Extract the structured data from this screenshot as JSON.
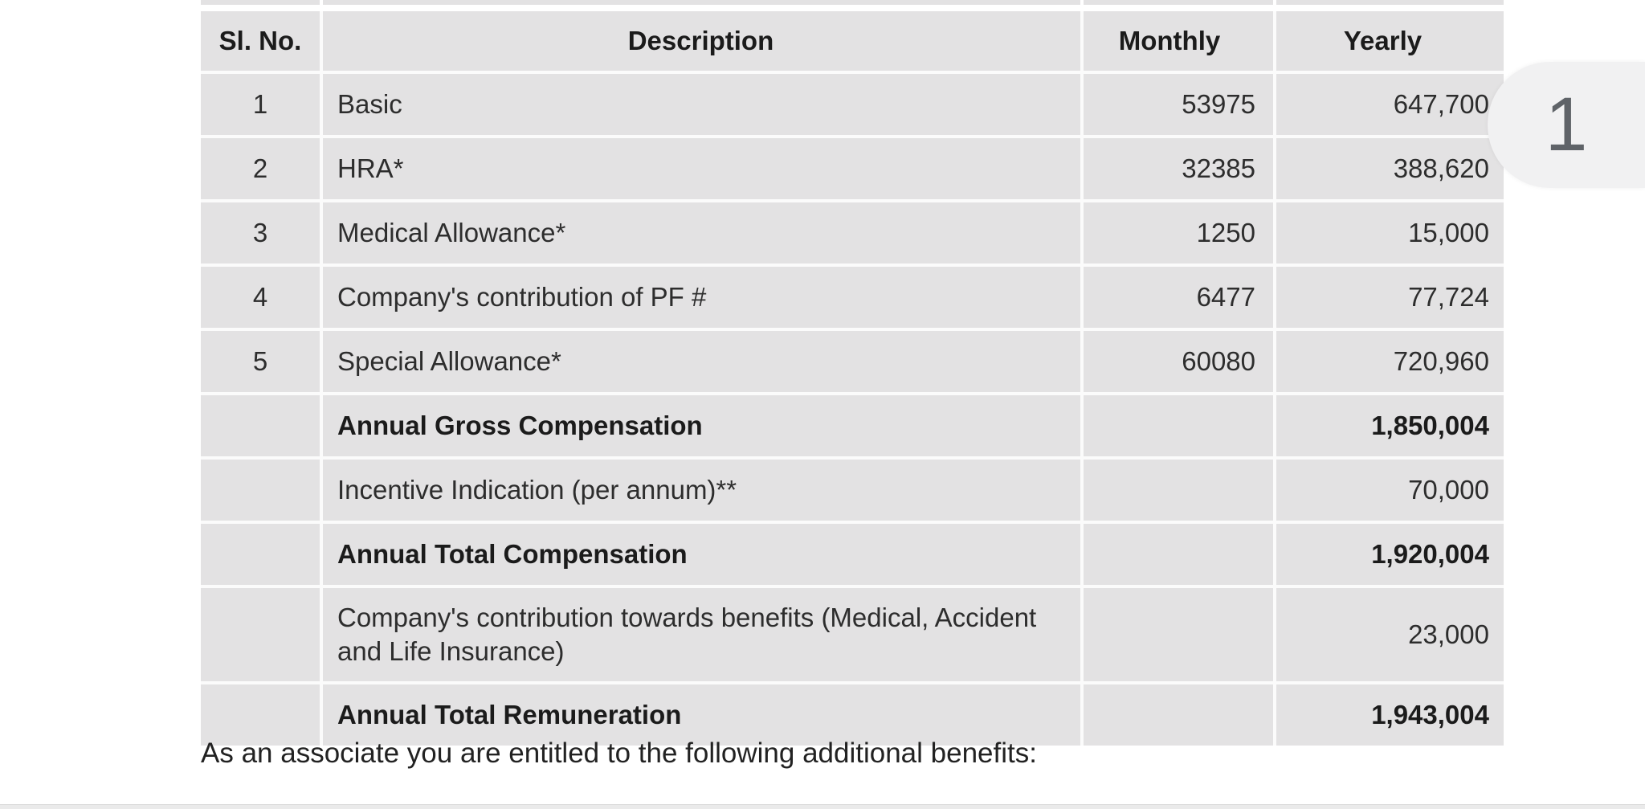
{
  "document": {
    "table": {
      "headers": {
        "sl_no": "Sl. No.",
        "description": "Description",
        "monthly": "Monthly",
        "yearly": "Yearly"
      },
      "rows": [
        {
          "sl": "1",
          "description": "Basic",
          "monthly": "53975",
          "yearly": "647,700",
          "bold": false
        },
        {
          "sl": "2",
          "description": "HRA*",
          "monthly": "32385",
          "yearly": "388,620",
          "bold": false
        },
        {
          "sl": "3",
          "description": "Medical Allowance*",
          "monthly": "1250",
          "yearly": "15,000",
          "bold": false
        },
        {
          "sl": "4",
          "description": "Company's contribution of PF #",
          "monthly": "6477",
          "yearly": "77,724",
          "bold": false
        },
        {
          "sl": "5",
          "description": "Special Allowance*",
          "monthly": "60080",
          "yearly": "720,960",
          "bold": false
        },
        {
          "sl": "",
          "description": "Annual Gross Compensation",
          "monthly": "",
          "yearly": "1,850,004",
          "bold": true
        },
        {
          "sl": "",
          "description": "Incentive Indication (per annum)**",
          "monthly": "",
          "yearly": "70,000",
          "bold": false
        },
        {
          "sl": "",
          "description": "Annual Total Compensation",
          "monthly": "",
          "yearly": "1,920,004",
          "bold": true
        },
        {
          "sl": "",
          "description": "Company's contribution towards benefits (Medical, Accident and Life Insurance)",
          "monthly": "",
          "yearly": "23,000",
          "bold": false
        },
        {
          "sl": "",
          "description": "Annual Total Remuneration",
          "monthly": "",
          "yearly": "1,943,004",
          "bold": true
        }
      ]
    },
    "note_below_table": "As an associate you are entitled to the following additional benefits:"
  },
  "viewer": {
    "page_indicator": "1"
  },
  "colors": {
    "cell_background": "#e3e2e3",
    "gridline": "#fbfbfb",
    "text": "#2d2d2d",
    "page_indicator_background": "#f1f1f2",
    "page_indicator_text": "#5f6368",
    "bottom_bar": "#eaeaea"
  }
}
